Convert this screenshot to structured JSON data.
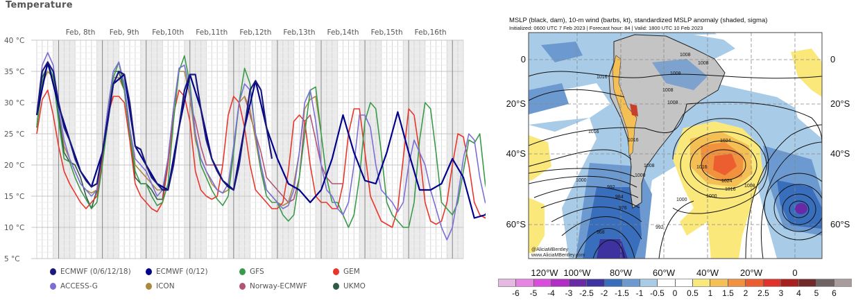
{
  "left_panel": {
    "title": "Temperature"
  },
  "chart_data": {
    "type": "line",
    "title": "Temperature",
    "xlabel": "",
    "ylabel": "",
    "y_unit": "°C",
    "ylim": [
      5,
      40
    ],
    "yticks": [
      "5 °C",
      "10 °C",
      "15 °C",
      "20 °C",
      "25 °C",
      "30 °C",
      "35 °C",
      "40 °C"
    ],
    "ytick_values": [
      5,
      10,
      15,
      20,
      25,
      30,
      35,
      40
    ],
    "day_labels": [
      "Feb, 8th",
      "Feb, 9th",
      "Feb,10th",
      "Feb,11th",
      "Feb,12th",
      "Feb,13th",
      "Feb,14th",
      "Feb,15th",
      "Feb,16th"
    ],
    "x_start": "Feb 7 12:00",
    "x_step_hours": 3,
    "x_range_hours": [
      0,
      234
    ],
    "grid": true,
    "legend_position": "bottom",
    "series": [
      {
        "name": "ECMWF (0/6/12/18)",
        "color": "#1a1a7a",
        "values": [
          28,
          35,
          36.5,
          35,
          30,
          26,
          24,
          21,
          19,
          17.5,
          16.5,
          17,
          22,
          27,
          33,
          35,
          34.5,
          30,
          23,
          22.5,
          20,
          18,
          17,
          16,
          16,
          20,
          26,
          32,
          34.5,
          34.5,
          29,
          24,
          21,
          19,
          17.5,
          16.5,
          16,
          20,
          26,
          32,
          33.5,
          32,
          26,
          21
        ]
      },
      {
        "name": "ECMWF (0/12)",
        "color": "#00008b",
        "values": [
          28,
          null,
          36.5,
          null,
          29.5,
          null,
          24,
          null,
          19,
          null,
          16.5,
          null,
          22,
          null,
          33,
          null,
          34.5,
          null,
          23,
          null,
          20,
          null,
          17,
          null,
          16,
          null,
          26,
          null,
          34.5,
          null,
          29,
          null,
          21,
          null,
          17.5,
          null,
          16,
          null,
          26,
          null,
          33.5,
          null,
          26,
          null,
          21,
          null,
          17,
          null,
          16,
          null,
          14,
          null,
          16,
          null,
          21,
          null,
          28,
          null,
          22,
          null,
          17.5,
          null,
          17,
          null,
          22,
          null,
          28.5,
          null,
          22,
          null,
          16,
          null,
          16,
          null,
          17,
          null,
          21,
          null,
          18,
          null,
          11.5,
          null,
          12,
          null,
          15,
          null,
          18,
          null,
          14,
          null,
          11,
          null,
          9.5,
          null,
          10,
          null,
          15,
          null,
          19,
          null,
          15
        ]
      },
      {
        "name": "GFS",
        "color": "#3a9a4a",
        "values": [
          26,
          33,
          36.5,
          34,
          27,
          21,
          20.5,
          18,
          16,
          14.5,
          13,
          14,
          20,
          27,
          34,
          36.5,
          32,
          25,
          19,
          17,
          17,
          15,
          13.5,
          14,
          17,
          27,
          35,
          37.5,
          33,
          25,
          20,
          18,
          16,
          14.5,
          13.5,
          15,
          22,
          30,
          35.5,
          33,
          25,
          19,
          15,
          14,
          14,
          12,
          11,
          12,
          18,
          25,
          32,
          32.5,
          25,
          18,
          14,
          14,
          12,
          10,
          12,
          18,
          27,
          30,
          29,
          22,
          14,
          12,
          11,
          10,
          10,
          14,
          24,
          30,
          29,
          22,
          14,
          13,
          12,
          14,
          19,
          24,
          23.5,
          25,
          17,
          13,
          12,
          14,
          18,
          23.5,
          23.5,
          17,
          12,
          11.5,
          10,
          9,
          7.5,
          9,
          15,
          21,
          27,
          27,
          19,
          12,
          9.5
        ]
      },
      {
        "name": "GEM",
        "color": "#e8362a",
        "values": [
          25,
          30.5,
          32,
          28,
          23,
          19,
          17,
          15.5,
          14,
          13,
          14,
          15,
          21,
          28,
          31,
          31,
          30,
          24,
          17,
          15,
          14,
          13,
          12.5,
          14,
          20,
          28,
          32,
          31,
          27,
          19,
          16,
          15,
          14.5,
          15,
          20,
          28,
          31,
          30,
          26,
          20,
          16,
          15,
          14,
          13,
          13,
          14,
          19,
          27,
          28,
          27,
          20,
          15,
          14,
          14,
          13,
          13,
          17,
          25,
          29,
          29,
          22,
          15,
          13,
          11,
          10.5,
          10,
          13,
          21,
          29,
          28,
          22,
          14,
          11,
          10.5,
          11,
          14,
          20,
          25,
          24.5,
          20,
          14,
          12,
          11.5,
          13,
          17,
          20,
          20,
          17,
          12,
          11,
          10.5,
          11,
          16,
          22,
          24,
          20
        ]
      },
      {
        "name": "ACCESS-G",
        "color": "#7b6fd6",
        "values": [
          28,
          36,
          38,
          36,
          29,
          24,
          21,
          19,
          17,
          16,
          15,
          16,
          22,
          29,
          35,
          36.5,
          33,
          26,
          21,
          20,
          19,
          17,
          15,
          16,
          21,
          29,
          35.5,
          36,
          32,
          25,
          21,
          19,
          17.5,
          16,
          15.5,
          17,
          23,
          30,
          33,
          32,
          25,
          20,
          16,
          15,
          14,
          13,
          13.5,
          16,
          22,
          30,
          32,
          27,
          20,
          16,
          15,
          13,
          12,
          14,
          20,
          28,
          28,
          26,
          20,
          16,
          15,
          14,
          12.5,
          14,
          20,
          24,
          22,
          20,
          16,
          13,
          10,
          8,
          10,
          15,
          21,
          25,
          24,
          18,
          14,
          13,
          12,
          13,
          16,
          20,
          21,
          18,
          13,
          12,
          11.5,
          10,
          8,
          9,
          16,
          21,
          20,
          17
        ]
      },
      {
        "name": "ICON",
        "color": "#a88a40",
        "values": [
          26,
          33,
          35,
          34,
          28,
          23,
          21,
          19,
          17,
          16,
          15.5,
          16,
          22,
          29,
          34,
          34,
          32,
          25,
          20,
          19,
          18,
          17,
          16,
          16,
          21,
          29,
          35,
          35,
          31,
          24,
          21,
          19,
          17,
          16,
          15.5,
          16,
          23,
          30,
          31,
          29,
          24,
          19,
          16,
          15,
          14,
          13.5,
          14,
          17,
          22,
          29,
          30.5,
          31,
          25
        ]
      },
      {
        "name": "Norway-ECMWF",
        "color": "#b05478",
        "values": [
          null,
          null,
          null,
          null,
          null,
          null,
          null,
          null,
          null,
          null,
          null,
          null,
          null,
          null,
          null,
          null,
          null,
          null,
          null,
          null,
          null,
          null,
          null,
          null,
          null,
          null,
          null,
          null,
          30,
          27,
          23,
          20,
          20,
          20,
          20,
          null,
          null,
          null,
          31,
          28,
          25,
          22,
          18,
          17,
          16,
          15,
          14,
          14.5,
          18,
          27,
          28,
          24,
          20,
          18,
          17,
          17,
          17
        ]
      },
      {
        "name": "UKMO",
        "color": "#2f5a46",
        "values": [
          26,
          34,
          36,
          34,
          28,
          22,
          20.5,
          20,
          18,
          15,
          13,
          16,
          22,
          29,
          35,
          35,
          32,
          25,
          18,
          17,
          17,
          16,
          14.5,
          14.5,
          21,
          null,
          null,
          null,
          null,
          null,
          null,
          null,
          null,
          null,
          null,
          null,
          null,
          null,
          null,
          null,
          null,
          null,
          null,
          null
        ]
      }
    ]
  },
  "legend": {
    "items": [
      {
        "label": "ECMWF (0/6/12/18)",
        "color": "#1a1a7a"
      },
      {
        "label": "ECMWF (0/12)",
        "color": "#00008b"
      },
      {
        "label": "GFS",
        "color": "#3a9a4a"
      },
      {
        "label": "GEM",
        "color": "#e8362a"
      },
      {
        "label": "ACCESS-G",
        "color": "#7b6fd6"
      },
      {
        "label": "ICON",
        "color": "#a88a40"
      },
      {
        "label": "Norway-ECMWF",
        "color": "#b05478"
      },
      {
        "label": "UKMO",
        "color": "#2f5a46"
      }
    ]
  },
  "map": {
    "title": "MSLP (black, dam), 10-m wind (barbs, kt), standardized MSLP anomaly (shaded, sigma)",
    "subtitle": "Initialized: 0600 UTC 7 Feb 2023 | Forecast hour: 84 | Valid: 1800 UTC 10 Feb 2023",
    "watermark": "@AliciaMBentley www.AliciaMBentley.com",
    "lat_labels_left": [
      "0",
      "20°S",
      "40°S",
      "60°S"
    ],
    "lat_labels_right": [
      "0",
      "20°S",
      "40°S",
      "60°S"
    ],
    "lon_labels": [
      "120°W",
      "100°W",
      "80°W",
      "60°W",
      "40°W",
      "20°W",
      "0"
    ],
    "contour_labels": [
      "1016",
      "1008",
      "1008",
      "1008",
      "1008",
      "1008",
      "1016",
      "1016",
      "1024",
      "1024",
      "1016",
      "1016",
      "1008",
      "1000",
      "1000",
      "992",
      "984",
      "976",
      "968",
      "1000",
      "1008",
      "992",
      "1000"
    ],
    "high_center_sigma": 3,
    "low_center_sigma": -3
  },
  "colorbar": {
    "ticks": [
      "-6",
      "-5",
      "-4",
      "-3",
      "-2.5",
      "-2",
      "-1.5",
      "-1",
      "-0.5",
      "0",
      "0.5",
      "1",
      "1.5",
      "2",
      "2.5",
      "3",
      "4",
      "5",
      "6"
    ],
    "colors": [
      "#e8b8e4",
      "#e884e4",
      "#dc4cdc",
      "#b42cc8",
      "#6a2aa8",
      "#3c32a0",
      "#386ebc",
      "#6c9ad0",
      "#a8cce8",
      "#ffffff",
      "#ffffff",
      "#fbe87a",
      "#f4c056",
      "#f0923e",
      "#ec5e30",
      "#e4302a",
      "#a8201e",
      "#702828",
      "#6e6464",
      "#a89c9c"
    ]
  }
}
